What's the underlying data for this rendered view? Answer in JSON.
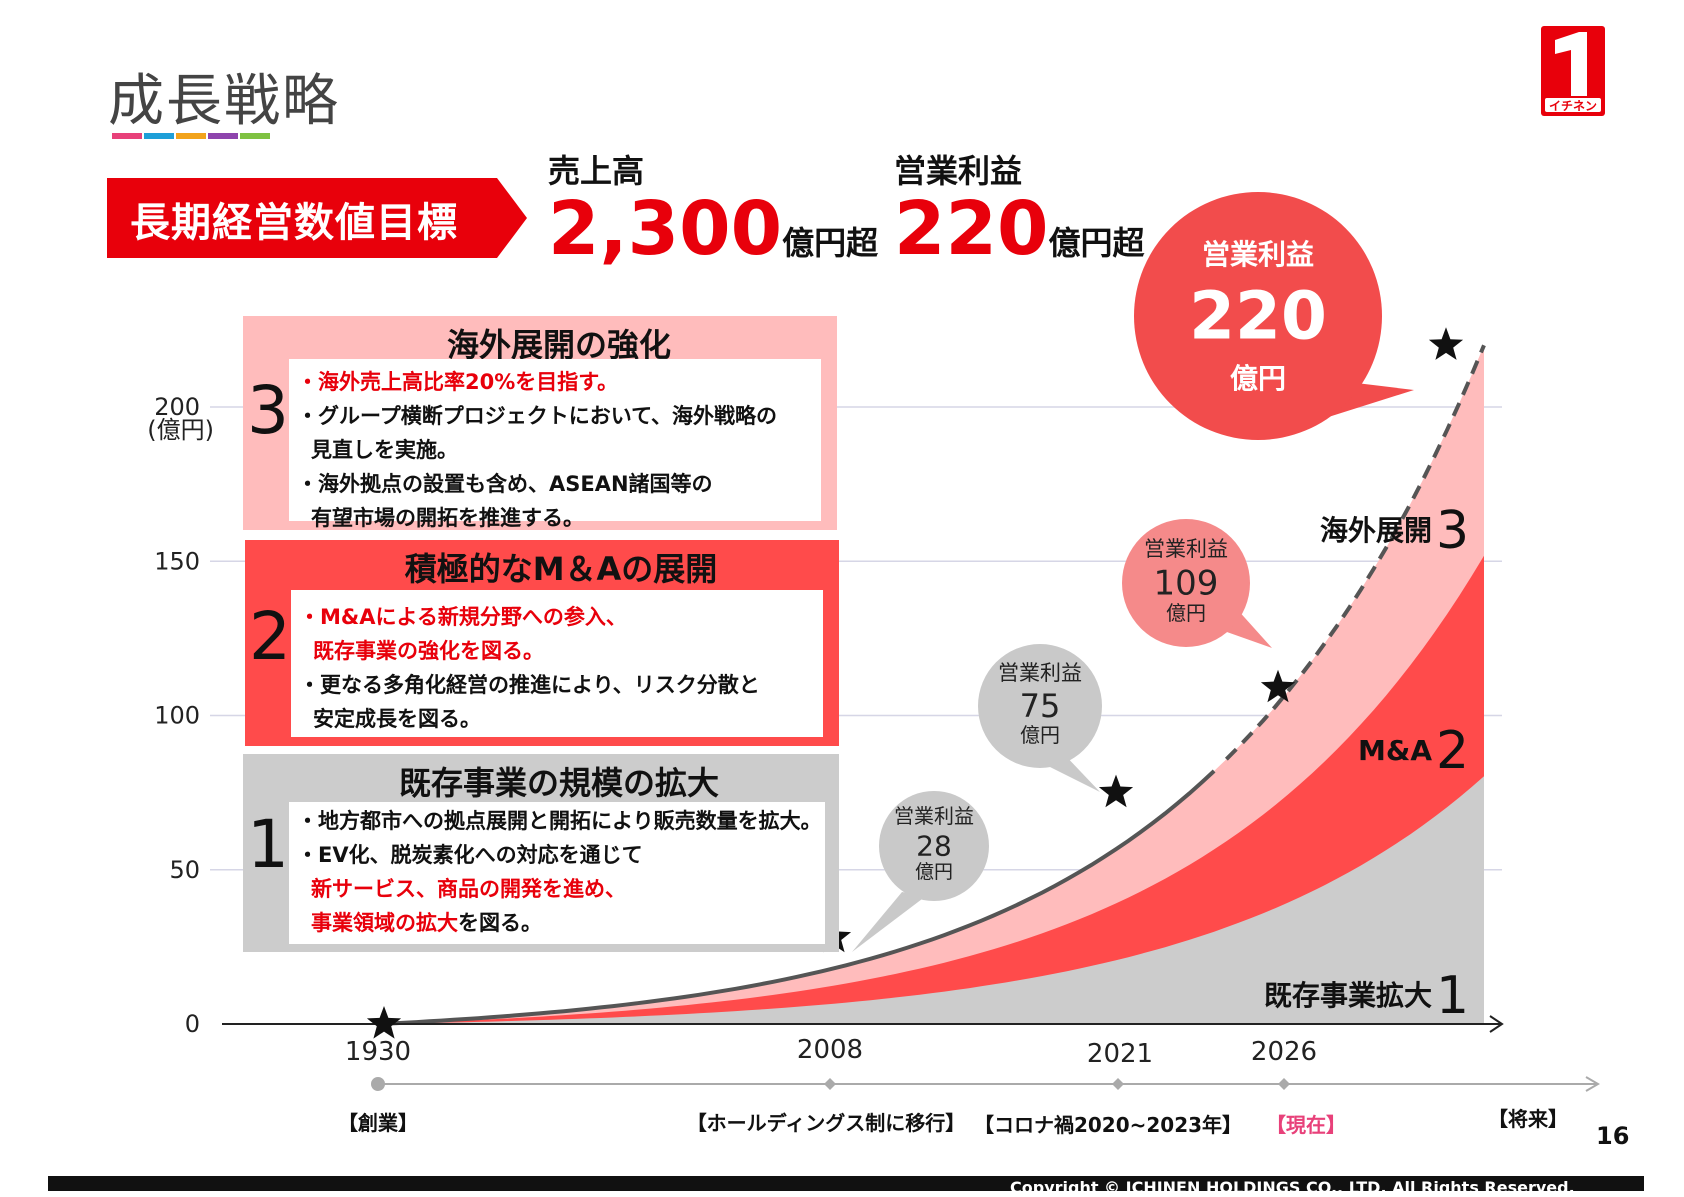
{
  "page": {
    "title": "成長戦略",
    "title_bar_colors": [
      "#e8417a",
      "#1e9fd8",
      "#f2a31b",
      "#8e44ad",
      "#7fc242"
    ],
    "logo_text": "イチネン",
    "logo_color": "#e8000b",
    "page_number": "16",
    "copyright": "Copyright © ICHINEN HOLDINGS CO., LTD.  All Rights Reserved."
  },
  "targets": {
    "banner": "長期経営数値目標",
    "sales_label": "売上高",
    "sales_value": "2,300",
    "sales_unit": "億円超",
    "profit_label": "営業利益",
    "profit_value": "220",
    "profit_unit": "億円超"
  },
  "panels": [
    {
      "number": "3",
      "title": "海外展開の強化",
      "color": "#ffbcbc",
      "lines": [
        {
          "text": "・海外売上高比率20%を目指す。",
          "red": true
        },
        {
          "text": "・グループ横断プロジェクトにおいて、海外戦略の",
          "red": false
        },
        {
          "text": "見直しを実施。",
          "red": false,
          "indent": true
        },
        {
          "text": "・海外拠点の設置も含め、ASEAN諸国等の",
          "red": false
        },
        {
          "text": "有望市場の開拓を推進する。",
          "red": false,
          "indent": true
        }
      ]
    },
    {
      "number": "2",
      "title": "積極的なM＆Aの展開",
      "color": "#ff4b4b",
      "lines": [
        {
          "text": "・M&Aによる新規分野への参入、",
          "red": true
        },
        {
          "text": "既存事業の強化を図る。",
          "red": true,
          "indent": true
        },
        {
          "text": "・更なる多角化経営の推進により、リスク分散と",
          "red": false
        },
        {
          "text": "安定成長を図る。",
          "red": false,
          "indent": true
        }
      ]
    },
    {
      "number": "1",
      "title": "既存事業の規模の拡大",
      "color": "#cccccc",
      "lines": [
        {
          "text": "・地方都市への拠点展開と開拓により販売数量を拡大。",
          "red": false
        },
        {
          "text": "・EV化、脱炭素化への対応を通じて",
          "red": false
        },
        {
          "text": "新サービス、商品の開発を進め、",
          "red": true,
          "indent": true
        },
        {
          "text": "事業領域の拡大",
          "red": true,
          "indent": true,
          "suffix": "を図る。"
        }
      ]
    }
  ],
  "chart_data": {
    "type": "area",
    "ylabel": "(億円)",
    "ylim": [
      0,
      220
    ],
    "yticks": [
      0,
      50,
      100,
      150,
      200
    ],
    "x_milestones": [
      "1930",
      "2008",
      "2021",
      "2026"
    ],
    "timeline_labels": [
      {
        "year": "1930",
        "label": "【創業】",
        "color": "#111111"
      },
      {
        "year": "2008",
        "label": "【ホールディングス制に移行】",
        "color": "#111111"
      },
      {
        "year": "2021",
        "label": "【コロナ禍2020~2023年】",
        "color": "#111111"
      },
      {
        "year": "2026",
        "label": "【現在】",
        "color": "#e8417a"
      },
      {
        "year": "",
        "label": "【将来】",
        "color": "#111111"
      }
    ],
    "series": [
      {
        "name": "既存事業拡大",
        "number": "1",
        "color": "#cccccc"
      },
      {
        "name": "M&A",
        "number": "2",
        "color": "#ff4b4b"
      },
      {
        "name": "海外展開",
        "number": "3",
        "color": "#ffbcbc"
      }
    ],
    "milestones": [
      {
        "label": "",
        "value": 0,
        "unit": ""
      },
      {
        "label": "営業利益",
        "value": 28,
        "unit": "億円"
      },
      {
        "label": "営業利益",
        "value": 75,
        "unit": "億円"
      },
      {
        "label": "営業利益",
        "value": 109,
        "unit": "億円"
      },
      {
        "label": "営業利益",
        "value": 220,
        "unit": "億円"
      }
    ]
  }
}
